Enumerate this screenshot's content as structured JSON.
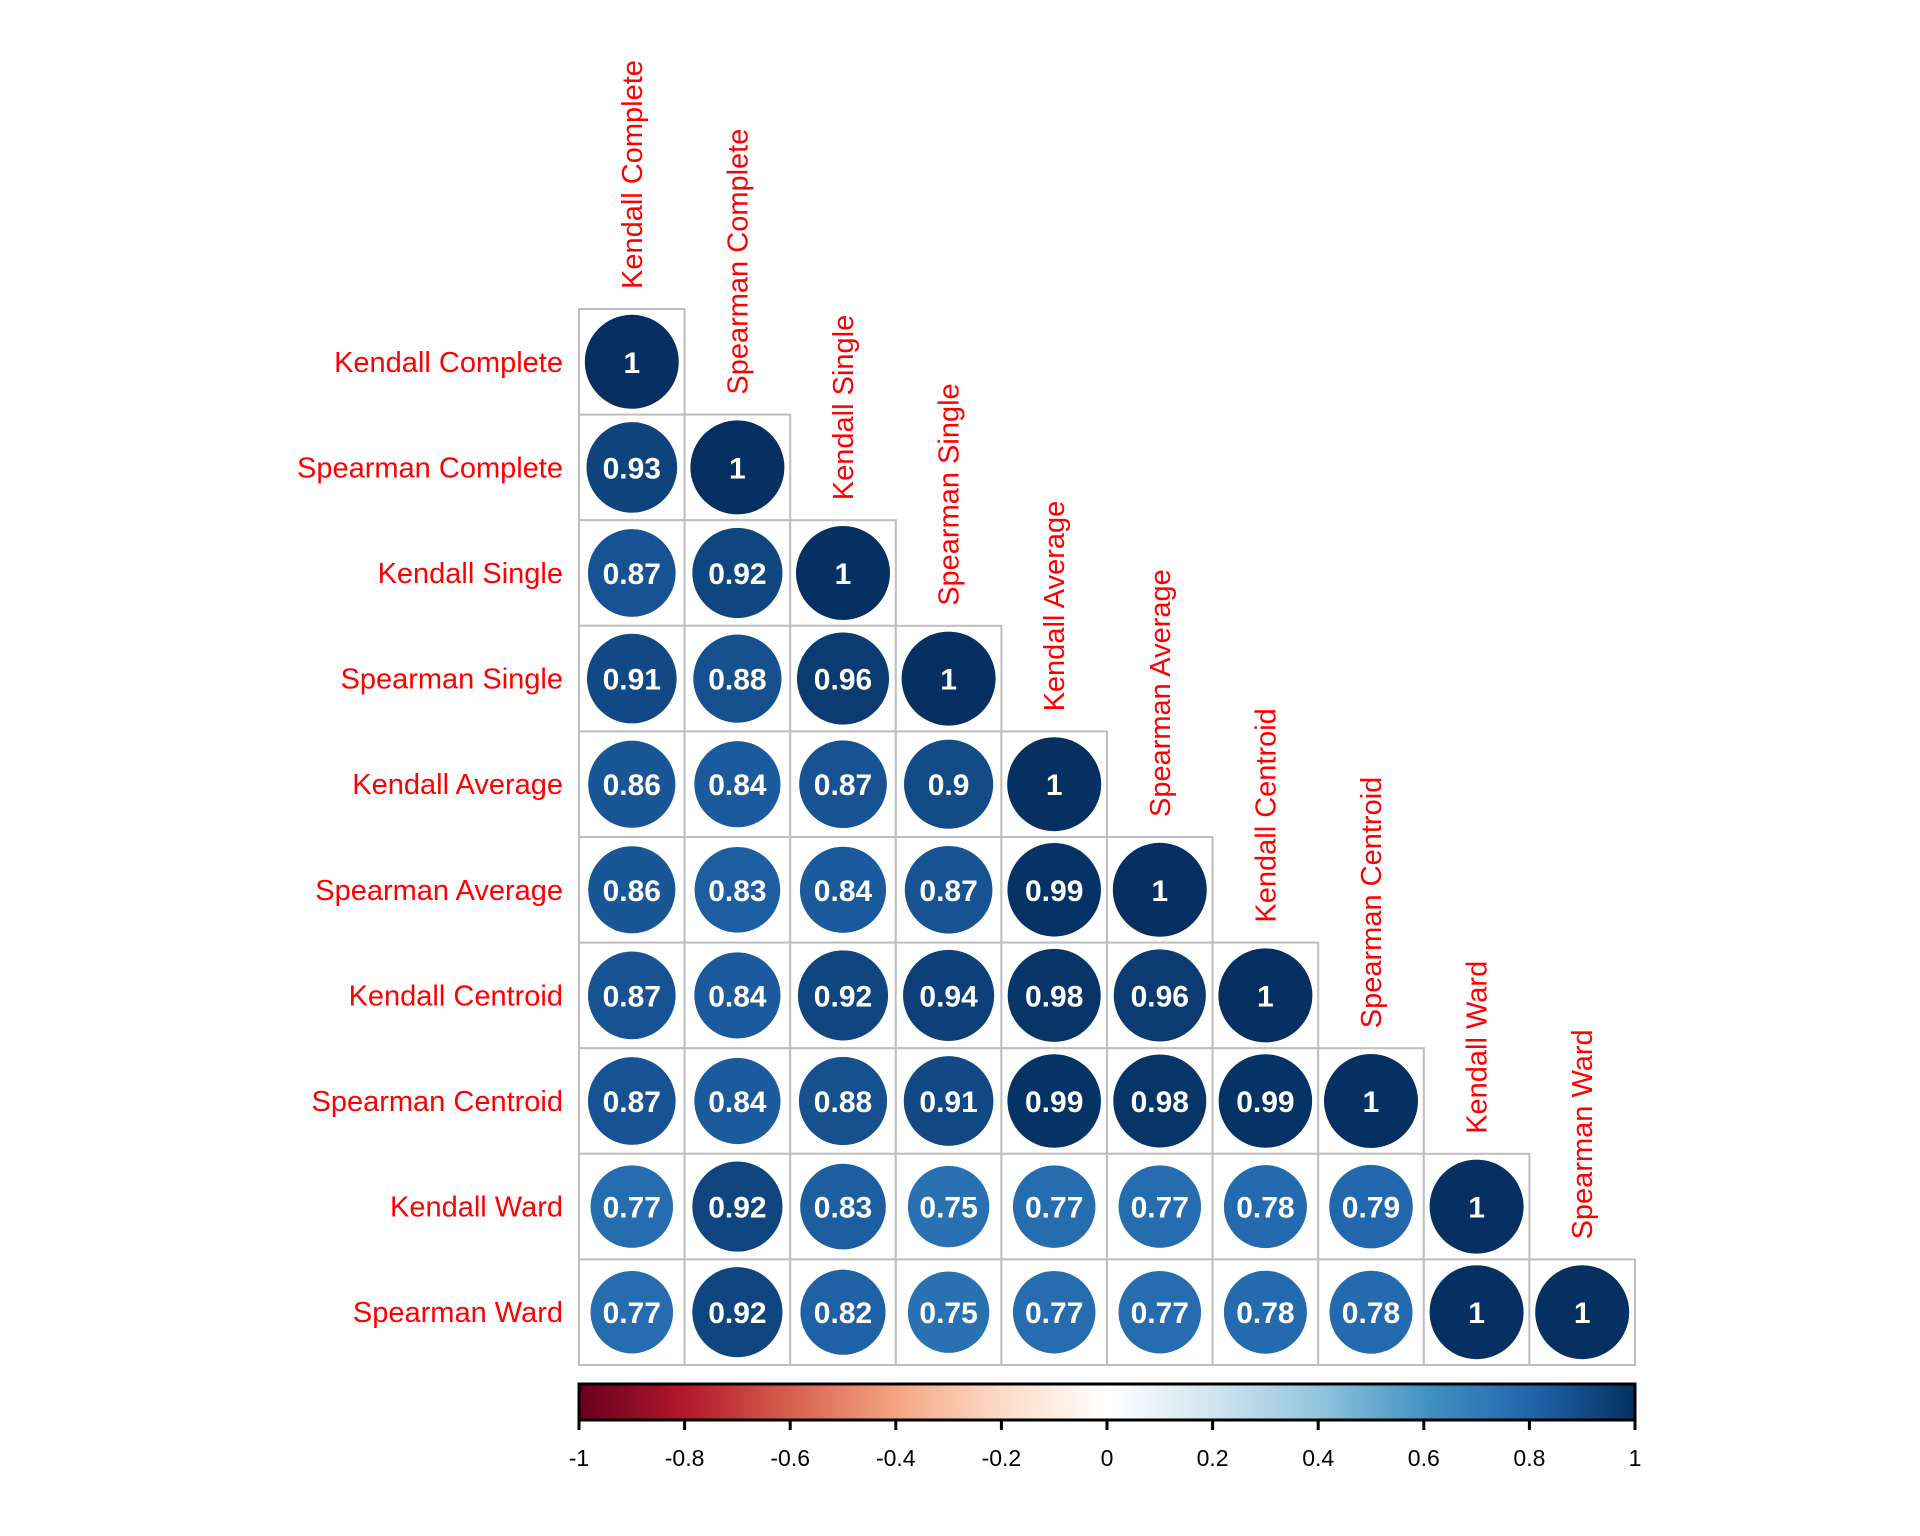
{
  "chart_data": {
    "type": "heatmap",
    "style": "corrplot-lower-circle",
    "title": "",
    "labels": [
      "Kendall Complete",
      "Spearman Complete",
      "Kendall Single",
      "Spearman Single",
      "Kendall Average",
      "Spearman Average",
      "Kendall Centroid",
      "Spearman Centroid",
      "Kendall Ward",
      "Spearman Ward"
    ],
    "label_color": "#ff0000",
    "matrix_lower": [
      [
        1
      ],
      [
        0.93,
        1
      ],
      [
        0.87,
        0.92,
        1
      ],
      [
        0.91,
        0.88,
        0.96,
        1
      ],
      [
        0.86,
        0.84,
        0.87,
        0.9,
        1
      ],
      [
        0.86,
        0.83,
        0.84,
        0.87,
        0.99,
        1
      ],
      [
        0.87,
        0.84,
        0.92,
        0.94,
        0.98,
        0.96,
        1
      ],
      [
        0.87,
        0.84,
        0.88,
        0.91,
        0.99,
        0.98,
        0.99,
        1
      ],
      [
        0.77,
        0.92,
        0.83,
        0.75,
        0.77,
        0.77,
        0.78,
        0.79,
        1
      ],
      [
        0.77,
        0.92,
        0.82,
        0.75,
        0.77,
        0.77,
        0.78,
        0.78,
        1,
        1
      ]
    ],
    "value_label_color": "#ffffff",
    "colorbar": {
      "range": [
        -1,
        1
      ],
      "ticks": [
        -1,
        -0.8,
        -0.6,
        -0.4,
        -0.2,
        0,
        0.2,
        0.4,
        0.6,
        0.8,
        1
      ],
      "tick_labels": [
        "-1",
        "-0.8",
        "-0.6",
        "-0.4",
        "-0.2",
        "0",
        "0.2",
        "0.4",
        "0.6",
        "0.8",
        "1"
      ],
      "palette": [
        "#67001f",
        "#b2182b",
        "#d6604d",
        "#f4a582",
        "#fddbc7",
        "#ffffff",
        "#d1e5f0",
        "#92c5de",
        "#4393c3",
        "#2166ac",
        "#053061"
      ],
      "placement": "bottom"
    },
    "grid_color": "#bebebe"
  }
}
